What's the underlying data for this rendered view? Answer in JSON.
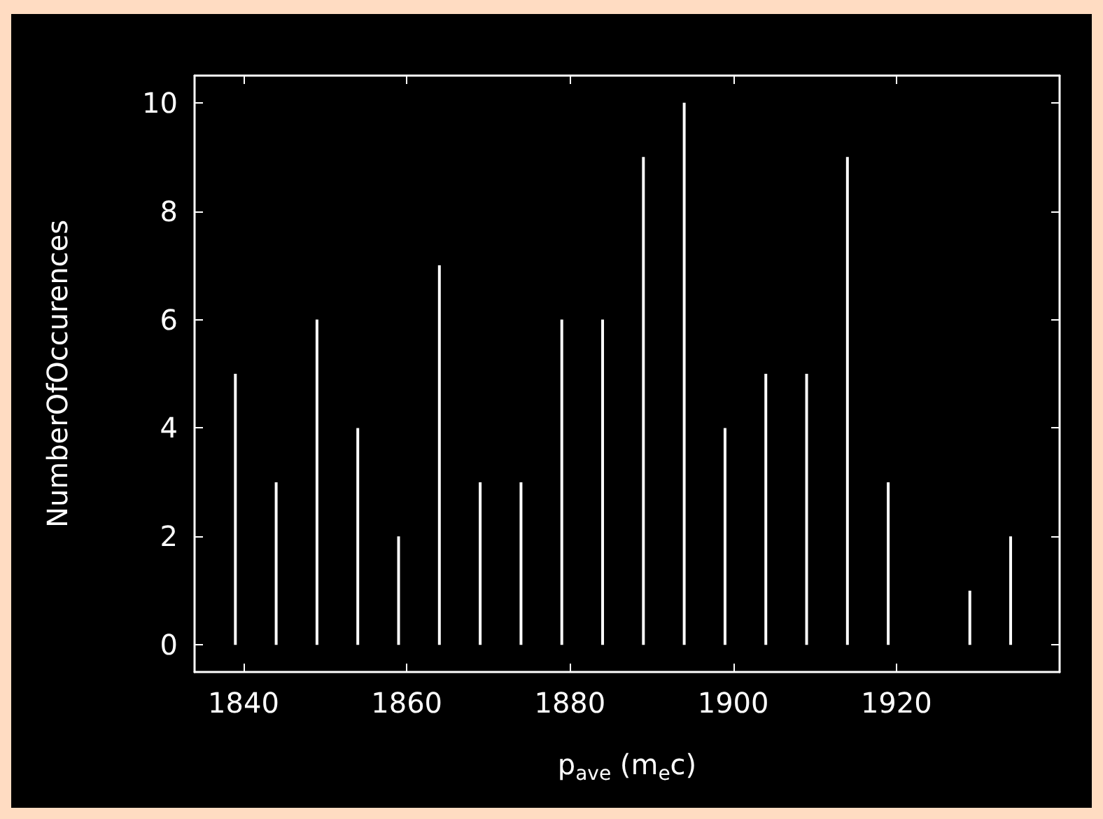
{
  "chart_data": {
    "type": "bar",
    "xlabel": "p$_{ave}$ (m$_{e}$c)",
    "ylabel": "NumberOfOccurences",
    "x": [
      1839,
      1844,
      1849,
      1854,
      1859,
      1864,
      1869,
      1874,
      1879,
      1884,
      1889,
      1894,
      1899,
      1904,
      1909,
      1914,
      1919,
      1924,
      1929,
      1934
    ],
    "values": [
      5,
      3,
      6,
      4,
      2,
      7,
      3,
      3,
      6,
      6,
      9,
      10,
      4,
      5,
      5,
      9,
      3,
      0,
      1,
      2
    ],
    "color": "#ffffff",
    "xlim": [
      1834,
      1940
    ],
    "xticks": [
      1840,
      1860,
      1880,
      1900,
      1920
    ],
    "ylim": [
      -0.5,
      10.5
    ],
    "yticks": [
      0,
      2,
      4,
      6,
      8,
      10
    ],
    "grid": false
  }
}
